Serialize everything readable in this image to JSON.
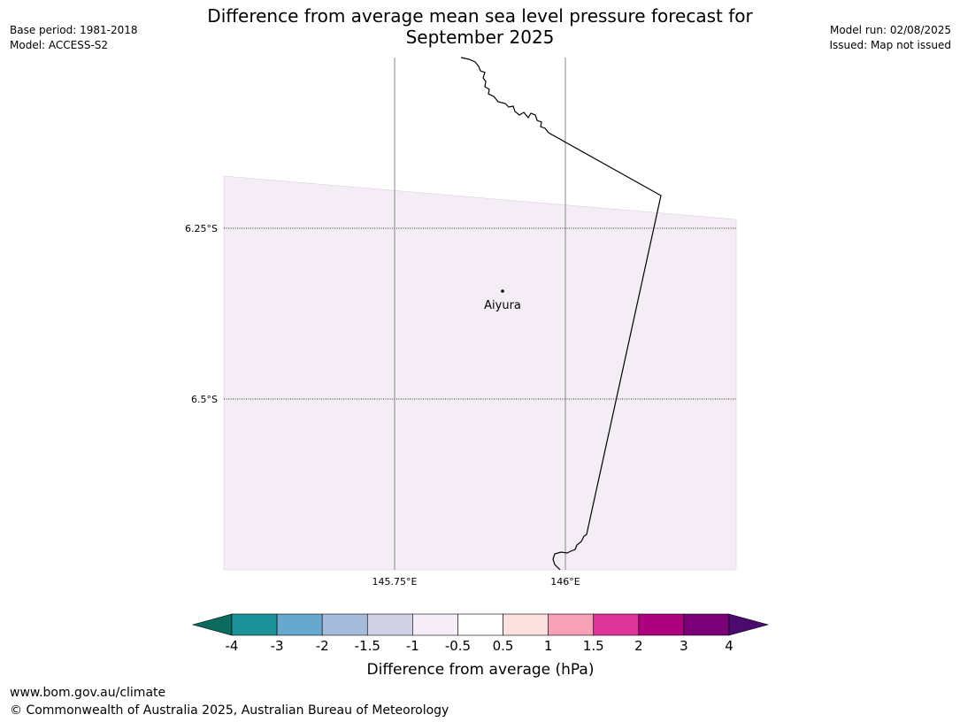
{
  "title": {
    "line1": "Difference from average mean sea level pressure forecast for",
    "line2": "September 2025"
  },
  "meta_left": {
    "base_period": "Base period: 1981-2018",
    "model": "Model: ACCESS-S2"
  },
  "meta_right": {
    "model_run": "Model run: 02/08/2025",
    "issued": "Issued: Map not issued"
  },
  "map": {
    "lat_labels": [
      "6.25°S",
      "6.5°S"
    ],
    "lon_labels": [
      "145.75°E",
      "146°E"
    ],
    "place": {
      "name": "Aiyura"
    },
    "shade_color": "#f4edf5",
    "shade_category": "0.5 to -0.5 hPa (near average, light)"
  },
  "colorbar": {
    "label": "Difference from average (hPa)",
    "ticks": [
      "-4",
      "-3",
      "-2",
      "-1.5",
      "-1",
      "-0.5",
      "0.5",
      "1",
      "1.5",
      "2",
      "3",
      "4"
    ],
    "low_extend_color": "#0b6b5e",
    "high_extend_color": "#4b0a6e",
    "colors": [
      "#1b9198",
      "#68a8cf",
      "#a7bcdd",
      "#d1d1e6",
      "#f5eef8",
      "#ffffff",
      "#fde0e0",
      "#f8a0b6",
      "#dd3497",
      "#ad017e",
      "#7a0177"
    ]
  },
  "footer": {
    "url": "www.bom.gov.au/climate",
    "copyright": "© Commonwealth of Australia 2025, Australian Bureau of Meteorology"
  }
}
